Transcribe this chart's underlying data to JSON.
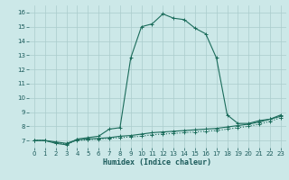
{
  "xlabel": "Humidex (Indice chaleur)",
  "background_color": "#cce8e8",
  "line_color": "#1a6b5a",
  "grid_color": "#aacccc",
  "xlim": [
    -0.5,
    23.5
  ],
  "ylim": [
    6.5,
    16.5
  ],
  "xticks": [
    0,
    1,
    2,
    3,
    4,
    5,
    6,
    7,
    8,
    9,
    10,
    11,
    12,
    13,
    14,
    15,
    16,
    17,
    18,
    19,
    20,
    21,
    22,
    23
  ],
  "yticks": [
    7,
    8,
    9,
    10,
    11,
    12,
    13,
    14,
    15,
    16
  ],
  "curve1_x": [
    0,
    1,
    2,
    3,
    4,
    5,
    6,
    7,
    8,
    9,
    10,
    11,
    12,
    13,
    14,
    15,
    16,
    17,
    18,
    19,
    20,
    21,
    22,
    23
  ],
  "curve1_y": [
    7.0,
    7.0,
    6.8,
    6.7,
    7.1,
    7.2,
    7.3,
    7.8,
    7.9,
    12.8,
    15.0,
    15.2,
    15.9,
    15.6,
    15.5,
    14.9,
    14.5,
    12.8,
    8.8,
    8.2,
    8.2,
    8.4,
    8.5,
    8.7
  ],
  "curve2_x": [
    0,
    1,
    2,
    3,
    4,
    5,
    6,
    7,
    8,
    9,
    10,
    11,
    12,
    13,
    14,
    15,
    16,
    17,
    18,
    19,
    20,
    21,
    22,
    23
  ],
  "curve2_y": [
    7.0,
    7.0,
    6.85,
    6.75,
    7.0,
    7.05,
    7.1,
    7.15,
    7.2,
    7.25,
    7.3,
    7.4,
    7.45,
    7.5,
    7.55,
    7.6,
    7.65,
    7.7,
    7.8,
    7.9,
    8.0,
    8.15,
    8.35,
    8.6
  ],
  "curve3_x": [
    0,
    1,
    2,
    3,
    4,
    5,
    6,
    7,
    8,
    9,
    10,
    11,
    12,
    13,
    14,
    15,
    16,
    17,
    18,
    19,
    20,
    21,
    22,
    23
  ],
  "curve3_y": [
    7.0,
    7.0,
    6.9,
    6.8,
    7.05,
    7.1,
    7.15,
    7.2,
    7.3,
    7.35,
    7.45,
    7.55,
    7.6,
    7.65,
    7.7,
    7.75,
    7.8,
    7.85,
    7.95,
    8.05,
    8.15,
    8.3,
    8.5,
    8.8
  ],
  "marker": "+"
}
